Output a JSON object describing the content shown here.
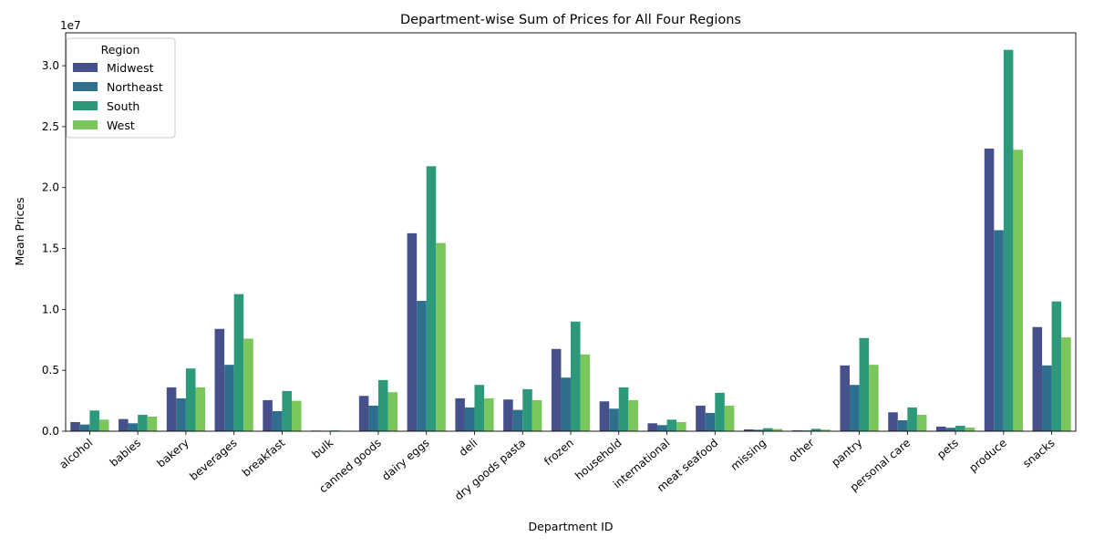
{
  "chart_data": {
    "type": "bar",
    "title": "Department-wise Sum of Prices for All Four Regions",
    "xlabel": "Department ID",
    "ylabel": "Mean Prices",
    "y_multiplier_label": "1e7",
    "ylim": [
      0,
      32.7
    ],
    "yticks": [
      "0.0",
      "0.5",
      "1.0",
      "1.5",
      "2.0",
      "2.5",
      "3.0"
    ],
    "ytick_values": [
      0,
      5,
      10,
      15,
      20,
      25,
      30
    ],
    "legend": {
      "title": "Region",
      "placement": "top-left"
    },
    "categories": [
      "alcohol",
      "babies",
      "bakery",
      "beverages",
      "breakfast",
      "bulk",
      "canned goods",
      "dairy eggs",
      "deli",
      "dry goods pasta",
      "frozen",
      "household",
      "international",
      "meat seafood",
      "missing",
      "other",
      "pantry",
      "personal care",
      "pets",
      "produce",
      "snacks"
    ],
    "series": [
      {
        "name": "Midwest",
        "color": "#46508b",
        "values": [
          0.75,
          1.0,
          3.6,
          8.4,
          2.55,
          0.05,
          2.9,
          16.25,
          2.7,
          2.6,
          6.75,
          2.45,
          0.65,
          2.1,
          0.15,
          0.07,
          5.4,
          1.55,
          0.38,
          23.2,
          8.55
        ]
      },
      {
        "name": "Northeast",
        "color": "#2e6f8e",
        "values": [
          0.55,
          0.65,
          2.7,
          5.45,
          1.65,
          0.04,
          2.1,
          10.7,
          1.95,
          1.75,
          4.4,
          1.85,
          0.5,
          1.5,
          0.12,
          0.06,
          3.8,
          0.9,
          0.28,
          16.5,
          5.4
        ]
      },
      {
        "name": "South",
        "color": "#2c9a7a",
        "values": [
          1.7,
          1.35,
          5.15,
          11.25,
          3.3,
          0.06,
          4.2,
          21.75,
          3.8,
          3.45,
          9.0,
          3.6,
          0.95,
          3.15,
          0.25,
          0.2,
          7.65,
          1.95,
          0.45,
          31.3,
          10.65
        ]
      },
      {
        "name": "West",
        "color": "#7ac55c",
        "values": [
          0.95,
          1.2,
          3.6,
          7.6,
          2.5,
          0.04,
          3.2,
          15.45,
          2.7,
          2.55,
          6.3,
          2.55,
          0.75,
          2.1,
          0.18,
          0.13,
          5.45,
          1.35,
          0.3,
          23.1,
          7.7
        ]
      }
    ]
  }
}
